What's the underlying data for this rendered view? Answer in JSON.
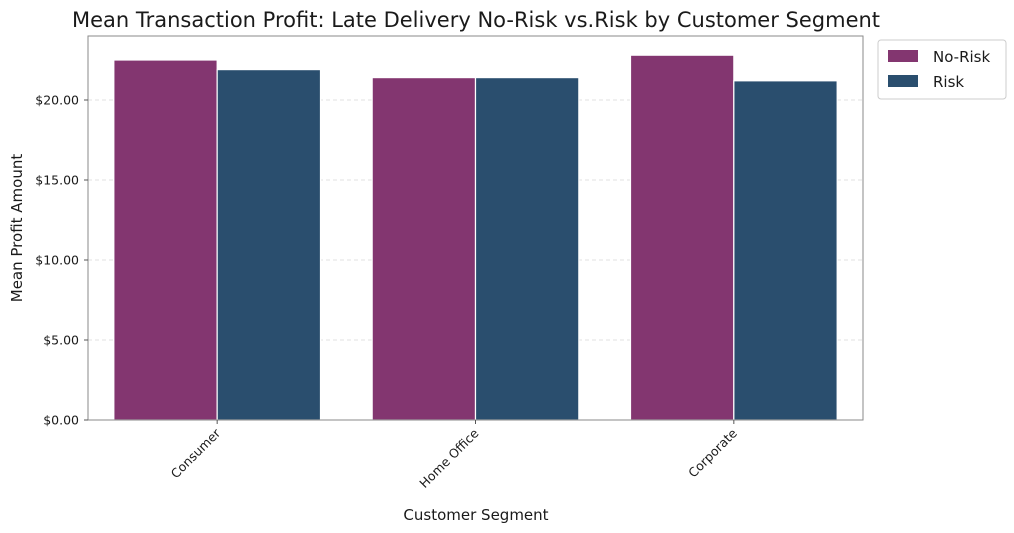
{
  "chart_data": {
    "type": "bar",
    "title": "Mean Transaction Profit: Late Delivery No-Risk vs.Risk by Customer Segment",
    "xlabel": "Customer Segment",
    "ylabel": "Mean Profit Amount",
    "categories": [
      "Consumer",
      "Home Office",
      "Corporate"
    ],
    "series": [
      {
        "name": "No-Risk",
        "values": [
          22.5,
          21.4,
          22.8
        ],
        "color": "#833670"
      },
      {
        "name": "Risk",
        "values": [
          21.9,
          21.4,
          21.2
        ],
        "color": "#2a4e6e"
      }
    ],
    "ylim": [
      0,
      24
    ],
    "yticks": [
      0,
      5,
      10,
      15,
      20
    ],
    "ytick_labels": [
      "$0.00",
      "$5.00",
      "$10.00",
      "$15.00",
      "$20.00"
    ],
    "grid": "y-dashed",
    "legend_position": "outside-top-right"
  }
}
